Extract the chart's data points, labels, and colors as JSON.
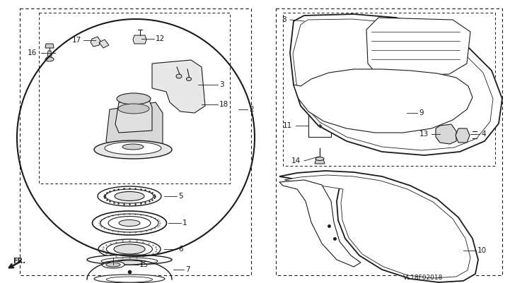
{
  "bg_color": "#ffffff",
  "line_color": "#1a1a1a",
  "watermark": "VL18F02018",
  "figsize": [
    7.21,
    4.01
  ],
  "dpi": 100
}
